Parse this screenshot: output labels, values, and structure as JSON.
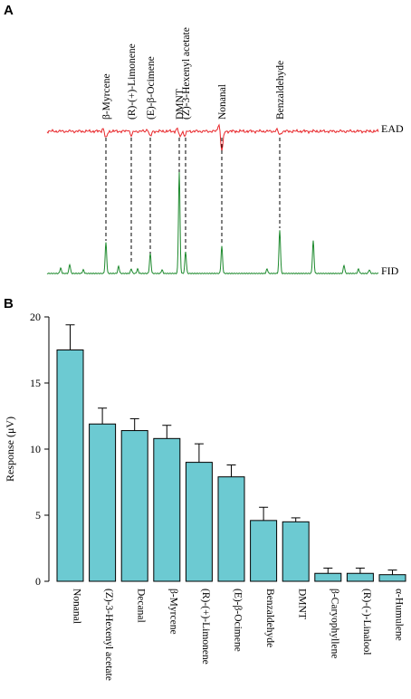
{
  "panel_a": {
    "letter": "A",
    "ead_label": "EAD",
    "fid_label": "FID",
    "peak_labels": [
      "β-Myrcene",
      "(R)-(+)-Limonene",
      "(E)-β-Ocimene",
      "DMNT",
      "(Z)-3-Hexenyl acetate",
      "Nonanal",
      "Benzaldehyde"
    ],
    "ead_color": "#e8262a",
    "fid_color": "#1e8a2e"
  },
  "chart_data": {
    "type": "bar",
    "panel_letter": "B",
    "categories": [
      "Nonanal",
      "(Z)-3-Hexenyl acetate",
      "Decanal",
      "β-Myrcene",
      "(R)-(+)-Limonene",
      "(E)-β-Ocimene",
      "Benzaldehyde",
      "DMNT",
      "β-Caryophyllene",
      "(R)-(-)-Linalool",
      "α-Humulene"
    ],
    "values": [
      17.5,
      11.9,
      11.4,
      10.8,
      9.0,
      7.9,
      4.6,
      4.5,
      0.6,
      0.6,
      0.5
    ],
    "errors": [
      1.9,
      1.2,
      0.9,
      1.0,
      1.4,
      0.9,
      1.0,
      0.3,
      0.4,
      0.4,
      0.35
    ],
    "ylabel": "Response (μV)",
    "ylim": [
      0,
      20
    ],
    "yticks": [
      0,
      5,
      10,
      15,
      20
    ],
    "bar_color": "#6ccad2",
    "grid": false
  }
}
